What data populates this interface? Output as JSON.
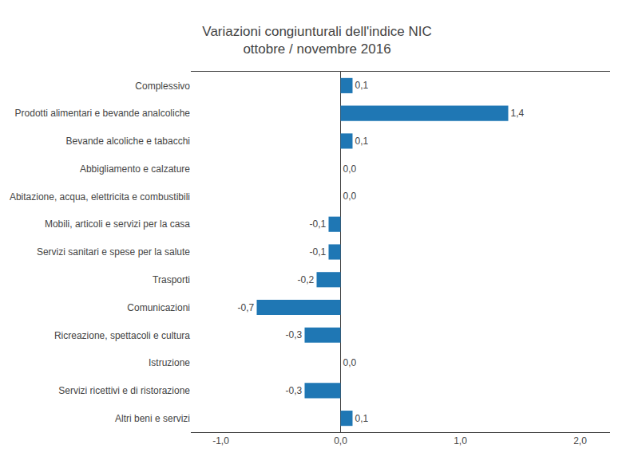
{
  "chart_data": {
    "type": "bar",
    "orientation": "horizontal",
    "title": "Variazioni congiunturali dell'indice NIC\nottobre / novembre 2016",
    "categories": [
      "Complessivo",
      "Prodotti alimentari e bevande analcoliche",
      "Bevande alcoliche e tabacchi",
      "Abbigliamento e calzature",
      "Abitazione, acqua, elettricita e combustibili",
      "Mobili, articoli e servizi per la casa",
      "Servizi sanitari e spese per la salute",
      "Trasporti",
      "Comunicazioni",
      "Ricreazione, spettacoli e cultura",
      "Istruzione",
      "Servizi ricettivi e di ristorazione",
      "Altri beni e servizi"
    ],
    "values": [
      0.1,
      1.4,
      0.1,
      0.0,
      0.0,
      -0.1,
      -0.1,
      -0.2,
      -0.7,
      -0.3,
      0.0,
      -0.3,
      0.1
    ],
    "value_labels": [
      "0,1",
      "1,4",
      "0,1",
      "0,0",
      "0,0",
      "-0,1",
      "-0,1",
      "-0,2",
      "-0,7",
      "-0,3",
      "0,0",
      "-0,3",
      "0,1"
    ],
    "data_labels": true,
    "xlim": [
      -1.25,
      2.25
    ],
    "xticks": [
      {
        "value": -1.0,
        "label": "-1,0"
      },
      {
        "value": 0.0,
        "label": "0,0"
      },
      {
        "value": 1.0,
        "label": "1,0"
      },
      {
        "value": 2.0,
        "label": "2,0"
      }
    ],
    "grid": false
  }
}
